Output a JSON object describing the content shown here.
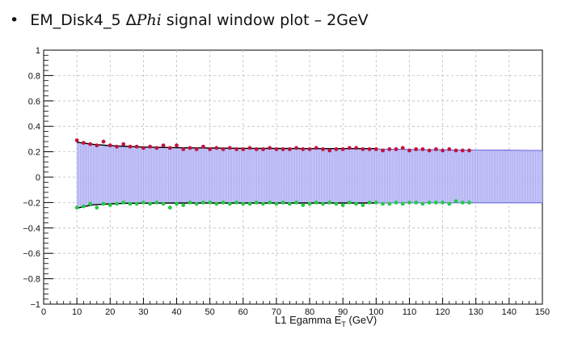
{
  "slide": {
    "bullet": "•",
    "title_prefix": "EM_Disk4_5 Δ",
    "title_italic": "Phi",
    "title_suffix": " signal window plot – 2GeV"
  },
  "chart_data": {
    "type": "scatter",
    "title": "EM_Disk4_5 ΔPhi signal window plot – 2GeV",
    "xlabel": "L1 Egamma E",
    "xlabel_sub": "T",
    "xlabel_unit": " (GeV)",
    "ylabel": "",
    "xlim": [
      0,
      150
    ],
    "ylim": [
      -1,
      1
    ],
    "x_ticks": [
      0,
      10,
      20,
      30,
      40,
      50,
      60,
      70,
      80,
      90,
      100,
      110,
      120,
      130,
      140,
      150
    ],
    "y_ticks": [
      -1,
      -0.8,
      -0.6,
      -0.4,
      -0.2,
      0,
      0.2,
      0.4,
      0.6,
      0.8,
      1
    ],
    "grid": true,
    "colors": {
      "upper_points": "#c0143c",
      "lower_points": "#22cc44",
      "fit_line": "#000000",
      "band_fill": "#c8c8f8",
      "band_line": "#3b3bd6"
    },
    "series": [
      {
        "name": "upper points",
        "x": [
          10,
          12,
          14,
          16,
          18,
          20,
          22,
          24,
          26,
          28,
          30,
          32,
          34,
          36,
          38,
          40,
          42,
          44,
          46,
          48,
          50,
          52,
          54,
          56,
          58,
          60,
          62,
          64,
          66,
          68,
          70,
          72,
          74,
          76,
          78,
          80,
          82,
          84,
          86,
          88,
          90,
          92,
          94,
          96,
          98,
          100,
          102,
          104,
          106,
          108,
          110,
          112,
          114,
          116,
          118,
          120,
          122,
          124,
          126,
          128
        ],
        "y": [
          0.29,
          0.27,
          0.26,
          0.25,
          0.28,
          0.25,
          0.24,
          0.26,
          0.24,
          0.24,
          0.23,
          0.24,
          0.23,
          0.25,
          0.23,
          0.25,
          0.22,
          0.23,
          0.22,
          0.24,
          0.22,
          0.23,
          0.22,
          0.23,
          0.22,
          0.22,
          0.23,
          0.22,
          0.22,
          0.23,
          0.22,
          0.22,
          0.22,
          0.23,
          0.22,
          0.22,
          0.23,
          0.22,
          0.21,
          0.22,
          0.22,
          0.23,
          0.23,
          0.22,
          0.22,
          0.22,
          0.21,
          0.22,
          0.22,
          0.23,
          0.21,
          0.22,
          0.22,
          0.21,
          0.22,
          0.21,
          0.22,
          0.21,
          0.21,
          0.21
        ]
      },
      {
        "name": "lower points",
        "x": [
          10,
          12,
          14,
          16,
          18,
          20,
          22,
          24,
          26,
          28,
          30,
          32,
          34,
          36,
          38,
          40,
          42,
          44,
          46,
          48,
          50,
          52,
          54,
          56,
          58,
          60,
          62,
          64,
          66,
          68,
          70,
          72,
          74,
          76,
          78,
          80,
          82,
          84,
          86,
          88,
          90,
          92,
          94,
          96,
          98,
          100,
          102,
          104,
          106,
          108,
          110,
          112,
          114,
          116,
          118,
          120,
          122,
          124,
          126,
          128
        ],
        "y": [
          -0.24,
          -0.23,
          -0.21,
          -0.24,
          -0.21,
          -0.22,
          -0.21,
          -0.2,
          -0.21,
          -0.21,
          -0.2,
          -0.21,
          -0.2,
          -0.21,
          -0.24,
          -0.21,
          -0.22,
          -0.2,
          -0.21,
          -0.2,
          -0.2,
          -0.21,
          -0.2,
          -0.21,
          -0.2,
          -0.21,
          -0.21,
          -0.2,
          -0.21,
          -0.2,
          -0.21,
          -0.2,
          -0.21,
          -0.2,
          -0.22,
          -0.21,
          -0.2,
          -0.21,
          -0.2,
          -0.21,
          -0.22,
          -0.2,
          -0.21,
          -0.22,
          -0.2,
          -0.2,
          -0.21,
          -0.21,
          -0.2,
          -0.21,
          -0.2,
          -0.2,
          -0.21,
          -0.2,
          -0.2,
          -0.2,
          -0.21,
          -0.19,
          -0.2,
          -0.2
        ]
      },
      {
        "name": "upper fit",
        "x": [
          10,
          15,
          20,
          25,
          30,
          40,
          50,
          60,
          70,
          80,
          90,
          100
        ],
        "y": [
          0.275,
          0.258,
          0.248,
          0.242,
          0.237,
          0.232,
          0.229,
          0.227,
          0.226,
          0.225,
          0.225,
          0.225
        ]
      },
      {
        "name": "lower fit",
        "x": [
          10,
          12,
          15,
          20,
          25,
          30,
          40,
          50,
          60,
          70,
          80,
          90,
          100
        ],
        "y": [
          -0.245,
          -0.232,
          -0.218,
          -0.21,
          -0.206,
          -0.205,
          -0.204,
          -0.204,
          -0.204,
          -0.204,
          -0.204,
          -0.204,
          -0.204
        ]
      },
      {
        "name": "signal window band",
        "x": [
          10,
          15,
          20,
          25,
          30,
          40,
          50,
          60,
          70,
          80,
          90,
          100,
          110,
          120,
          130,
          140,
          150
        ],
        "upper": [
          0.275,
          0.258,
          0.248,
          0.242,
          0.237,
          0.232,
          0.229,
          0.227,
          0.226,
          0.225,
          0.225,
          0.222,
          0.218,
          0.215,
          0.213,
          0.212,
          0.21
        ],
        "lower": [
          -0.245,
          -0.218,
          -0.21,
          -0.206,
          -0.205,
          -0.204,
          -0.204,
          -0.204,
          -0.204,
          -0.204,
          -0.204,
          -0.204,
          -0.203,
          -0.203,
          -0.203,
          -0.203,
          -0.203
        ]
      }
    ]
  }
}
